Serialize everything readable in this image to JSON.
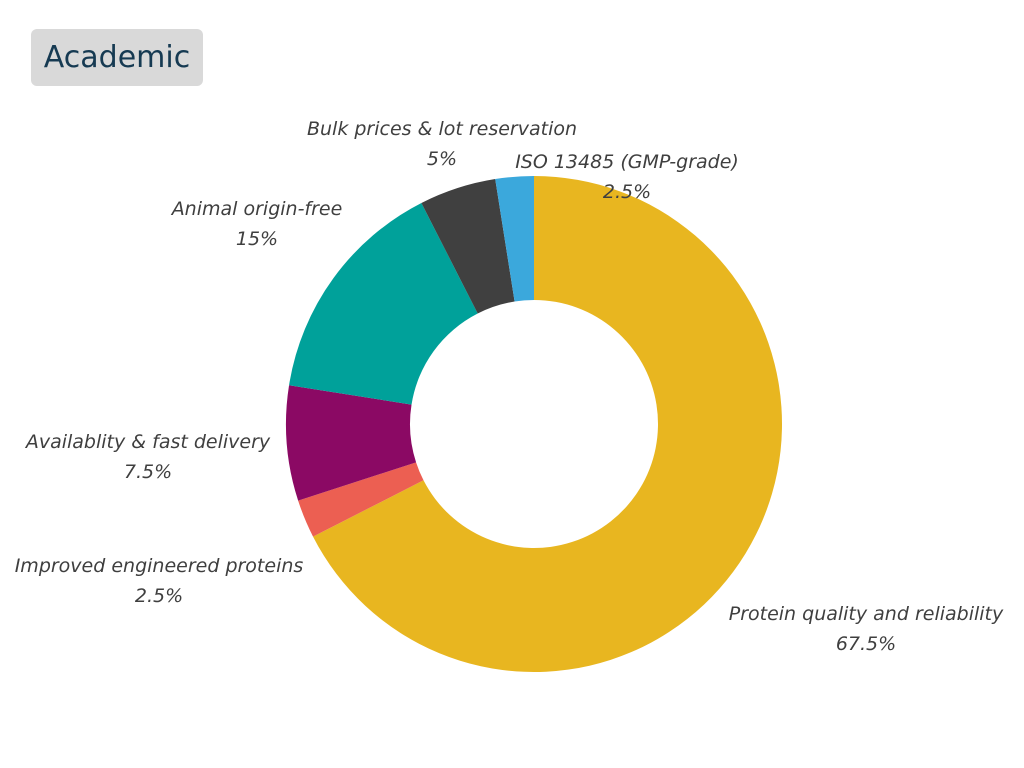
{
  "header": {
    "title": "Academic"
  },
  "chart_data": {
    "type": "pie",
    "variant": "donut",
    "title": "Academic",
    "unit": "%",
    "slices": [
      {
        "label": "Protein quality and reliability",
        "value": 67.5,
        "value_label": "67.5%",
        "color": "#e8b620"
      },
      {
        "label": "Improved engineered proteins",
        "value": 2.5,
        "value_label": "2.5%",
        "color": "#ec5f52"
      },
      {
        "label": "Availablity & fast delivery",
        "value": 7.5,
        "value_label": "7.5%",
        "color": "#8b0964"
      },
      {
        "label": "Animal origin-free",
        "value": 15,
        "value_label": "15%",
        "color": "#00a19a"
      },
      {
        "label": "Bulk prices & lot reservation",
        "value": 5,
        "value_label": "5%",
        "color": "#404040"
      },
      {
        "label": "ISO 13485 (GMP-grade)",
        "value": 2.5,
        "value_label": "2.5%",
        "color": "#3ba8dc"
      }
    ]
  }
}
